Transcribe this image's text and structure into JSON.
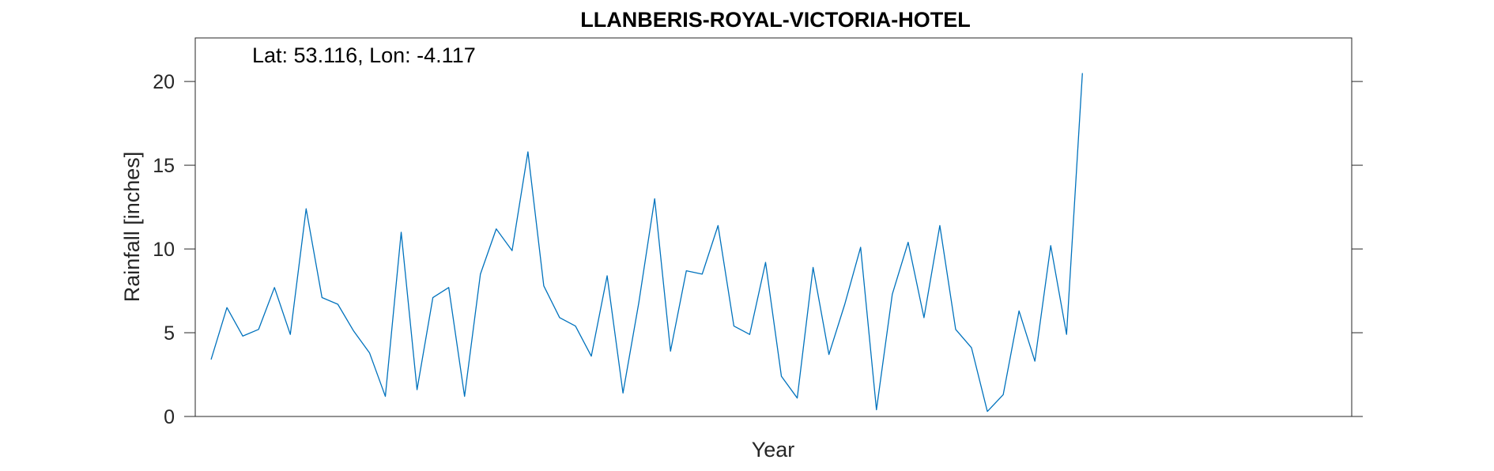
{
  "chart_data": {
    "type": "line",
    "title": "LLANBERIS-ROYAL-VICTORIA-HOTEL",
    "xlabel": "Year",
    "ylabel": "Rainfall [inches]",
    "annotation": "Lat: 53.116, Lon: -4.117",
    "ylim": [
      0,
      22.6
    ],
    "xlim": [
      0,
      73
    ],
    "yticks": [
      0,
      5,
      10,
      15,
      20
    ],
    "x_tick_labels_shown": false,
    "grid": false,
    "series": [
      {
        "color": "#0072BD",
        "x": [
          1,
          2,
          3,
          4,
          5,
          6,
          7,
          8,
          9,
          10,
          11,
          12,
          13,
          14,
          15,
          16,
          17,
          18,
          19,
          20,
          21,
          22,
          23,
          24,
          25,
          26,
          27,
          28,
          29,
          30,
          31,
          32,
          33,
          34,
          35,
          36,
          37,
          38,
          39,
          40,
          41,
          42,
          43,
          44,
          45,
          46,
          47,
          48,
          49,
          50,
          51,
          52,
          53,
          54,
          55,
          56
        ],
        "values": [
          3.4,
          6.5,
          4.8,
          5.2,
          7.7,
          4.9,
          12.4,
          7.1,
          6.7,
          5.1,
          3.8,
          1.2,
          11.0,
          1.6,
          7.1,
          7.7,
          1.2,
          8.5,
          11.2,
          9.9,
          15.8,
          7.8,
          5.9,
          5.4,
          3.6,
          8.4,
          1.4,
          6.8,
          13.0,
          3.9,
          8.7,
          8.5,
          11.4,
          5.4,
          4.9,
          9.2,
          2.4,
          1.1,
          8.9,
          3.7,
          6.7,
          10.1,
          0.4,
          7.3,
          10.4,
          5.9,
          11.4,
          5.2,
          4.1,
          0.3,
          1.3,
          6.3,
          3.3,
          10.2,
          4.9,
          20.5
        ]
      }
    ]
  }
}
